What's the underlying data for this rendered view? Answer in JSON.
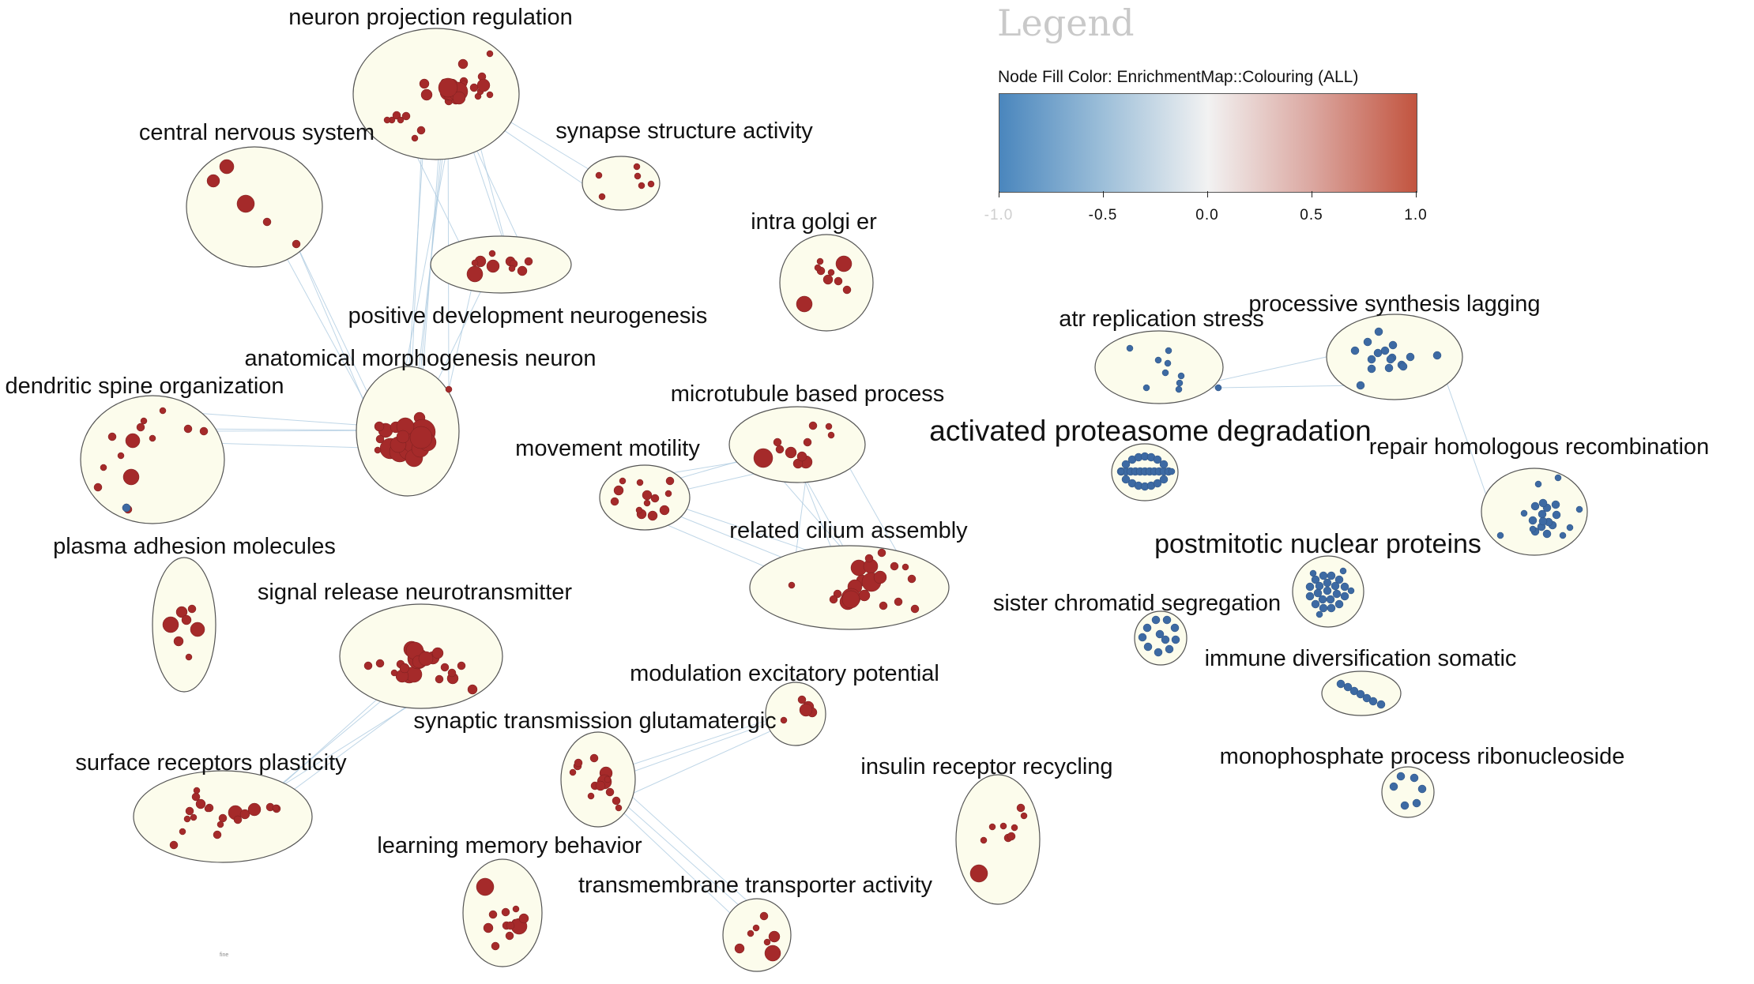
{
  "legend": {
    "title": "Legend",
    "caption": "Node Fill Color:  EnrichmentMap::Colouring (ALL)",
    "ticks": [
      "-1.0",
      "-0.5",
      "0.0",
      "0.5",
      "1.0"
    ],
    "colors": {
      "low": "#4a86bd",
      "mid": "#f2f2f2",
      "high": "#c2543f"
    }
  },
  "colors": {
    "red_node": "#a52a2a",
    "blue_node": "#3d6aa3",
    "edge": "#a9c8df",
    "bubble_fill": "#fcfcec",
    "bubble_stroke": "#555555"
  },
  "clusters": [
    {
      "id": "c1",
      "label": "neuron projection regulation",
      "color": "red"
    },
    {
      "id": "c2",
      "label": "central nervous system",
      "color": "red"
    },
    {
      "id": "c3",
      "label": "synapse structure activity",
      "color": "red"
    },
    {
      "id": "c4",
      "label": "positive development neurogenesis",
      "color": "red"
    },
    {
      "id": "c5",
      "label": "intra golgi er",
      "color": "red"
    },
    {
      "id": "c6",
      "label": "anatomical morphogenesis neuron",
      "color": "red"
    },
    {
      "id": "c7",
      "label": "dendritic spine organization",
      "color": "red"
    },
    {
      "id": "c8",
      "label": "microtubule based process",
      "color": "red"
    },
    {
      "id": "c9",
      "label": "movement motility",
      "color": "red"
    },
    {
      "id": "c10",
      "label": "related cilium assembly",
      "color": "red"
    },
    {
      "id": "c11",
      "label": "plasma adhesion molecules",
      "color": "red"
    },
    {
      "id": "c12",
      "label": "signal release neurotransmitter",
      "color": "red"
    },
    {
      "id": "c13",
      "label": "modulation excitatory potential",
      "color": "red"
    },
    {
      "id": "c14",
      "label": "synaptic transmission glutamatergic",
      "color": "red"
    },
    {
      "id": "c15",
      "label": "surface receptors plasticity",
      "color": "red"
    },
    {
      "id": "c16",
      "label": "insulin receptor recycling",
      "color": "red"
    },
    {
      "id": "c17",
      "label": "learning memory behavior",
      "color": "red"
    },
    {
      "id": "c18",
      "label": "transmembrane transporter activity",
      "color": "red"
    },
    {
      "id": "c19",
      "label": "atr replication stress",
      "color": "blue"
    },
    {
      "id": "c20",
      "label": "processive synthesis lagging",
      "color": "blue"
    },
    {
      "id": "c21",
      "label": "activated proteasome degradation",
      "color": "blue"
    },
    {
      "id": "c22",
      "label": "repair homologous recombination",
      "color": "blue"
    },
    {
      "id": "c23",
      "label": "postmitotic nuclear proteins",
      "color": "blue"
    },
    {
      "id": "c24",
      "label": "sister chromatid segregation",
      "color": "blue"
    },
    {
      "id": "c25",
      "label": "immune diversification somatic",
      "color": "blue"
    },
    {
      "id": "c26",
      "label": "monophosphate process ribonucleoside",
      "color": "blue"
    }
  ],
  "tiny_text": "fine"
}
